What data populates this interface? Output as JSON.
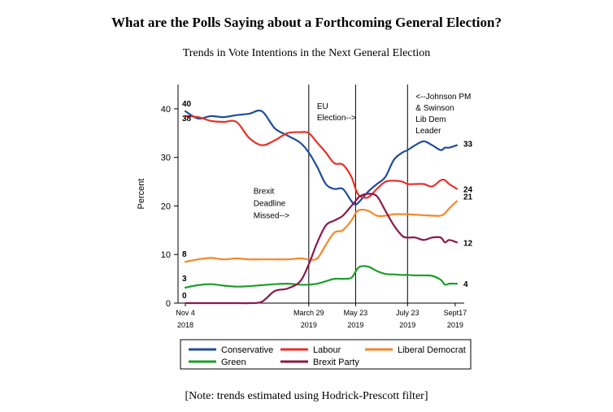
{
  "title": "What are the Polls Saying about a Forthcoming General Election?",
  "subtitle": "Trends in Vote Intentions in the Next General Election",
  "note": "[Note: trends estimated using Hodrick-Prescott filter]",
  "chart_data": {
    "type": "line",
    "ylabel": "Percent",
    "ylim": [
      0,
      45
    ],
    "yticks": [
      0,
      10,
      20,
      30,
      40
    ],
    "xlim": [
      0,
      319
    ],
    "x_labels": [
      {
        "x": 0,
        "line1": "Nov 4",
        "line2": "2018"
      },
      {
        "x": 145,
        "line1": "March 29",
        "line2": "2019"
      },
      {
        "x": 200,
        "line1": "May 23",
        "line2": "2019"
      },
      {
        "x": 261,
        "line1": "July 23",
        "line2": "2019"
      },
      {
        "x": 317,
        "line1": "Sept17",
        "line2": "2019"
      }
    ],
    "events": [
      {
        "x": 145,
        "lines": [
          "EU",
          "Election-->"
        ],
        "label_y": 40
      },
      {
        "x": 200,
        "lines": [],
        "label_y": 0
      },
      {
        "x": 261,
        "lines": [
          "<--Johnson PM",
          "& Swinson",
          "Lib Dem",
          "Leader"
        ],
        "label_y": 42
      }
    ],
    "annotations": [
      {
        "x": 80,
        "y": 22.5,
        "lines": [
          "Brexit",
          "Deadline",
          "Missed-->"
        ]
      }
    ],
    "x": [
      0,
      15,
      30,
      45,
      60,
      75,
      90,
      105,
      120,
      135,
      145,
      155,
      165,
      175,
      185,
      195,
      200,
      205,
      215,
      225,
      235,
      245,
      255,
      261,
      270,
      280,
      290,
      300,
      305,
      310,
      319
    ],
    "series": [
      {
        "name": "Conservative",
        "color": "#1f4e9a",
        "values": [
          39.5,
          38,
          38.5,
          38.3,
          38.7,
          39,
          39.5,
          36,
          34.5,
          33,
          31,
          28,
          24.5,
          23.5,
          23.5,
          21,
          20.3,
          21,
          23,
          24.5,
          26,
          29.5,
          31,
          31.5,
          32.5,
          33.3,
          32.5,
          31.5,
          32,
          32,
          32.5
        ],
        "start_label": "40",
        "end_label": "33"
      },
      {
        "name": "Labour",
        "color": "#e8302a",
        "values": [
          38.5,
          38.3,
          37.5,
          37.3,
          37.3,
          34,
          32.5,
          33.5,
          35,
          35.2,
          35,
          33,
          31,
          28.8,
          28.5,
          26,
          23.5,
          22,
          21.8,
          23.5,
          25,
          25.2,
          25,
          24.5,
          24.5,
          24.5,
          24,
          25.3,
          25.3,
          24.5,
          23.5
        ],
        "start_label": "38",
        "end_label": "24"
      },
      {
        "name": "Liberal Democrat",
        "color": "#f5872a",
        "values": [
          8.5,
          9,
          9.3,
          9,
          9.2,
          9,
          9,
          9,
          9,
          9.2,
          9,
          9.2,
          12,
          14.5,
          15,
          17,
          18.5,
          19.2,
          19,
          18,
          18,
          18.3,
          18.3,
          18.3,
          18.2,
          18.1,
          18,
          18,
          18.5,
          19.5,
          21
        ],
        "start_label": "8",
        "end_label": "21"
      },
      {
        "name": "Green",
        "color": "#1e9e2a",
        "values": [
          3.2,
          3.7,
          3.9,
          3.6,
          3.4,
          3.5,
          3.7,
          3.9,
          4,
          3.8,
          3.8,
          4,
          4.5,
          5,
          5,
          5.2,
          6.5,
          7.5,
          7.5,
          6.6,
          6,
          5.9,
          5.8,
          5.8,
          5.7,
          5.7,
          5.6,
          4.8,
          3.8,
          4,
          4
        ],
        "start_label": "3",
        "end_label": "4"
      },
      {
        "name": "Brexit Party",
        "color": "#8b1a4a",
        "values": [
          0,
          0,
          0,
          0,
          0,
          0,
          0.3,
          2.5,
          3,
          4.5,
          8,
          12.5,
          16,
          17,
          18,
          20,
          21,
          22,
          22.5,
          22,
          19,
          16,
          13.8,
          13.5,
          13.5,
          13,
          13.5,
          13.5,
          12.5,
          13,
          12.5
        ],
        "start_label": "0",
        "end_label": "12"
      }
    ],
    "legend_placement": "bottom"
  }
}
